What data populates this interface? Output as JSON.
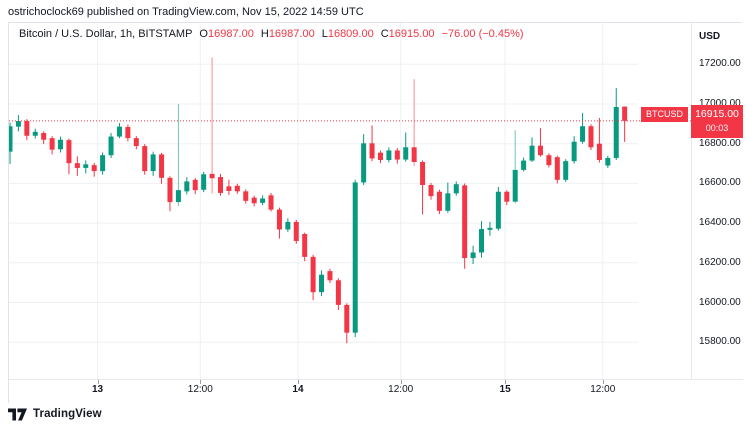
{
  "top_bar": {
    "attribution": "ostrichoclock69 published on TradingView.com, Nov 15, 2022 14:59 UTC"
  },
  "legend": {
    "symbol_title": "Bitcoin / U.S. Dollar, 1h, BITSTAMP",
    "ohlc": [
      {
        "label": "O",
        "value": "16987.00"
      },
      {
        "label": "H",
        "value": "16987.00"
      },
      {
        "label": "L",
        "value": "16809.00"
      },
      {
        "label": "C",
        "value": "16915.00"
      }
    ],
    "change": "−76.00 (−0.45%)"
  },
  "price_axis": {
    "currency_label": "USD",
    "ticks": [
      "17200.00",
      "17000.00",
      "16800.00",
      "16600.00",
      "16400.00",
      "16200.00",
      "16000.00",
      "15800.00"
    ]
  },
  "time_axis": {
    "ticks": [
      {
        "label": "13",
        "kind": "day"
      },
      {
        "label": "12:00",
        "kind": "time"
      },
      {
        "label": "14",
        "kind": "day"
      },
      {
        "label": "12:00",
        "kind": "time"
      },
      {
        "label": "15",
        "kind": "day"
      },
      {
        "label": "12:00",
        "kind": "time"
      }
    ]
  },
  "price_line": {
    "symbol": "BTCUSD",
    "price": "16915.00",
    "countdown": "00:03"
  },
  "footer": {
    "brand": "TradingView"
  },
  "colors": {
    "up": "#089981",
    "down": "#f23645",
    "up_wick_pale": "#6cc6b5",
    "down_wick_pale": "#f78d96",
    "grid": "#eef0f4",
    "price_line_red": "#f23645",
    "text": "#131722"
  },
  "chart_data": {
    "type": "candlestick",
    "title": "Bitcoin / U.S. Dollar",
    "symbol": "BTCUSD",
    "exchange": "BITSTAMP",
    "interval": "1h",
    "last": 16915.0,
    "open": 16987.0,
    "high": 16987.0,
    "low": 16809.0,
    "close": 16915.0,
    "change": -76.0,
    "change_pct": -0.45,
    "ylim": [
      15700,
      17300
    ],
    "y_ticks": [
      17200,
      17000,
      16800,
      16600,
      16400,
      16200,
      16000,
      15800
    ],
    "x_tick_labels": [
      "13",
      "12:00",
      "14",
      "12:00",
      "15",
      "12:00"
    ],
    "x_tick_candle_index": [
      10.4,
      22.6,
      34.2,
      46.4,
      58.8,
      70.4
    ],
    "grid": true,
    "candles_format": [
      "open",
      "high",
      "low",
      "close",
      "pale_wick_flag"
    ],
    "candles": [
      [
        16760,
        16906,
        16698,
        16888,
        0
      ],
      [
        16886,
        16944,
        16862,
        16914,
        0
      ],
      [
        16914,
        16924,
        16818,
        16840,
        0
      ],
      [
        16840,
        16876,
        16826,
        16860,
        0
      ],
      [
        16854,
        16862,
        16798,
        16820,
        0
      ],
      [
        16828,
        16838,
        16746,
        16770,
        0
      ],
      [
        16772,
        16836,
        16756,
        16820,
        0
      ],
      [
        16818,
        16826,
        16646,
        16702,
        0
      ],
      [
        16702,
        16736,
        16638,
        16678,
        0
      ],
      [
        16678,
        16716,
        16650,
        16696,
        0
      ],
      [
        16692,
        16704,
        16634,
        16662,
        0
      ],
      [
        16662,
        16756,
        16644,
        16742,
        0
      ],
      [
        16742,
        16854,
        16728,
        16836,
        0
      ],
      [
        16836,
        16904,
        16828,
        16886,
        0
      ],
      [
        16884,
        16896,
        16812,
        16828,
        0
      ],
      [
        16828,
        16838,
        16772,
        16788,
        0
      ],
      [
        16788,
        16798,
        16644,
        16662,
        0
      ],
      [
        16662,
        16760,
        16638,
        16746,
        0
      ],
      [
        16746,
        16754,
        16598,
        16628,
        0
      ],
      [
        16628,
        16636,
        16460,
        16506,
        0
      ],
      [
        16506,
        17000,
        16486,
        16566,
        1
      ],
      [
        16560,
        16632,
        16544,
        16610,
        0
      ],
      [
        16618,
        16628,
        16546,
        16566,
        0
      ],
      [
        16568,
        16658,
        16556,
        16646,
        0
      ],
      [
        16648,
        17235,
        16550,
        16626,
        1
      ],
      [
        16632,
        16648,
        16538,
        16552,
        0
      ],
      [
        16585,
        16618,
        16542,
        16562,
        0
      ],
      [
        16588,
        16598,
        16548,
        16560,
        0
      ],
      [
        16560,
        16570,
        16498,
        16512,
        0
      ],
      [
        16528,
        16538,
        16485,
        16500,
        0
      ],
      [
        16502,
        16540,
        16490,
        16524,
        0
      ],
      [
        16540,
        16552,
        16458,
        16468,
        0
      ],
      [
        16468,
        16478,
        16322,
        16368,
        0
      ],
      [
        16368,
        16424,
        16356,
        16406,
        0
      ],
      [
        16406,
        16416,
        16296,
        16310,
        0
      ],
      [
        16345,
        16352,
        16208,
        16230,
        0
      ],
      [
        16230,
        16240,
        16012,
        16052,
        0
      ],
      [
        16052,
        16162,
        16032,
        16140,
        0
      ],
      [
        16158,
        16170,
        16098,
        16112,
        0
      ],
      [
        16112,
        16122,
        15962,
        15988,
        0
      ],
      [
        15988,
        15996,
        15795,
        15848,
        0
      ],
      [
        15848,
        16618,
        15826,
        16605,
        0
      ],
      [
        16605,
        16848,
        16592,
        16802,
        0
      ],
      [
        16802,
        16892,
        16712,
        16726,
        0
      ],
      [
        16755,
        16766,
        16702,
        16718,
        0
      ],
      [
        16718,
        16782,
        16706,
        16766,
        0
      ],
      [
        16766,
        16778,
        16700,
        16720,
        0
      ],
      [
        16720,
        16856,
        16710,
        16782,
        0
      ],
      [
        16782,
        17125,
        16688,
        16708,
        1
      ],
      [
        16708,
        16716,
        16444,
        16592,
        0
      ],
      [
        16592,
        16602,
        16518,
        16536,
        0
      ],
      [
        16558,
        16568,
        16446,
        16462,
        0
      ],
      [
        16462,
        16604,
        16452,
        16550,
        0
      ],
      [
        16550,
        16610,
        16538,
        16596,
        0
      ],
      [
        16590,
        16600,
        16170,
        16224,
        0
      ],
      [
        16224,
        16286,
        16194,
        16252,
        0
      ],
      [
        16252,
        16410,
        16226,
        16370,
        0
      ],
      [
        16366,
        16406,
        16336,
        16376,
        0
      ],
      [
        16372,
        16582,
        16362,
        16558,
        0
      ],
      [
        16558,
        16565,
        16490,
        16508,
        0
      ],
      [
        16508,
        16868,
        16500,
        16668,
        1
      ],
      [
        16668,
        16730,
        16660,
        16715,
        0
      ],
      [
        16715,
        16832,
        16708,
        16790,
        0
      ],
      [
        16790,
        16878,
        16735,
        16742,
        0
      ],
      [
        16742,
        16752,
        16680,
        16692,
        0
      ],
      [
        16732,
        16740,
        16600,
        16618,
        0
      ],
      [
        16618,
        16722,
        16608,
        16712,
        0
      ],
      [
        16712,
        16838,
        16700,
        16810,
        0
      ],
      [
        16810,
        16955,
        16800,
        16888,
        0
      ],
      [
        16888,
        16898,
        16768,
        16782,
        0
      ],
      [
        16800,
        16930,
        16705,
        16718,
        0
      ],
      [
        16690,
        16740,
        16678,
        16728,
        0
      ],
      [
        16728,
        17080,
        16718,
        16985,
        0
      ],
      [
        16987,
        16987,
        16809,
        16915,
        0
      ]
    ]
  }
}
